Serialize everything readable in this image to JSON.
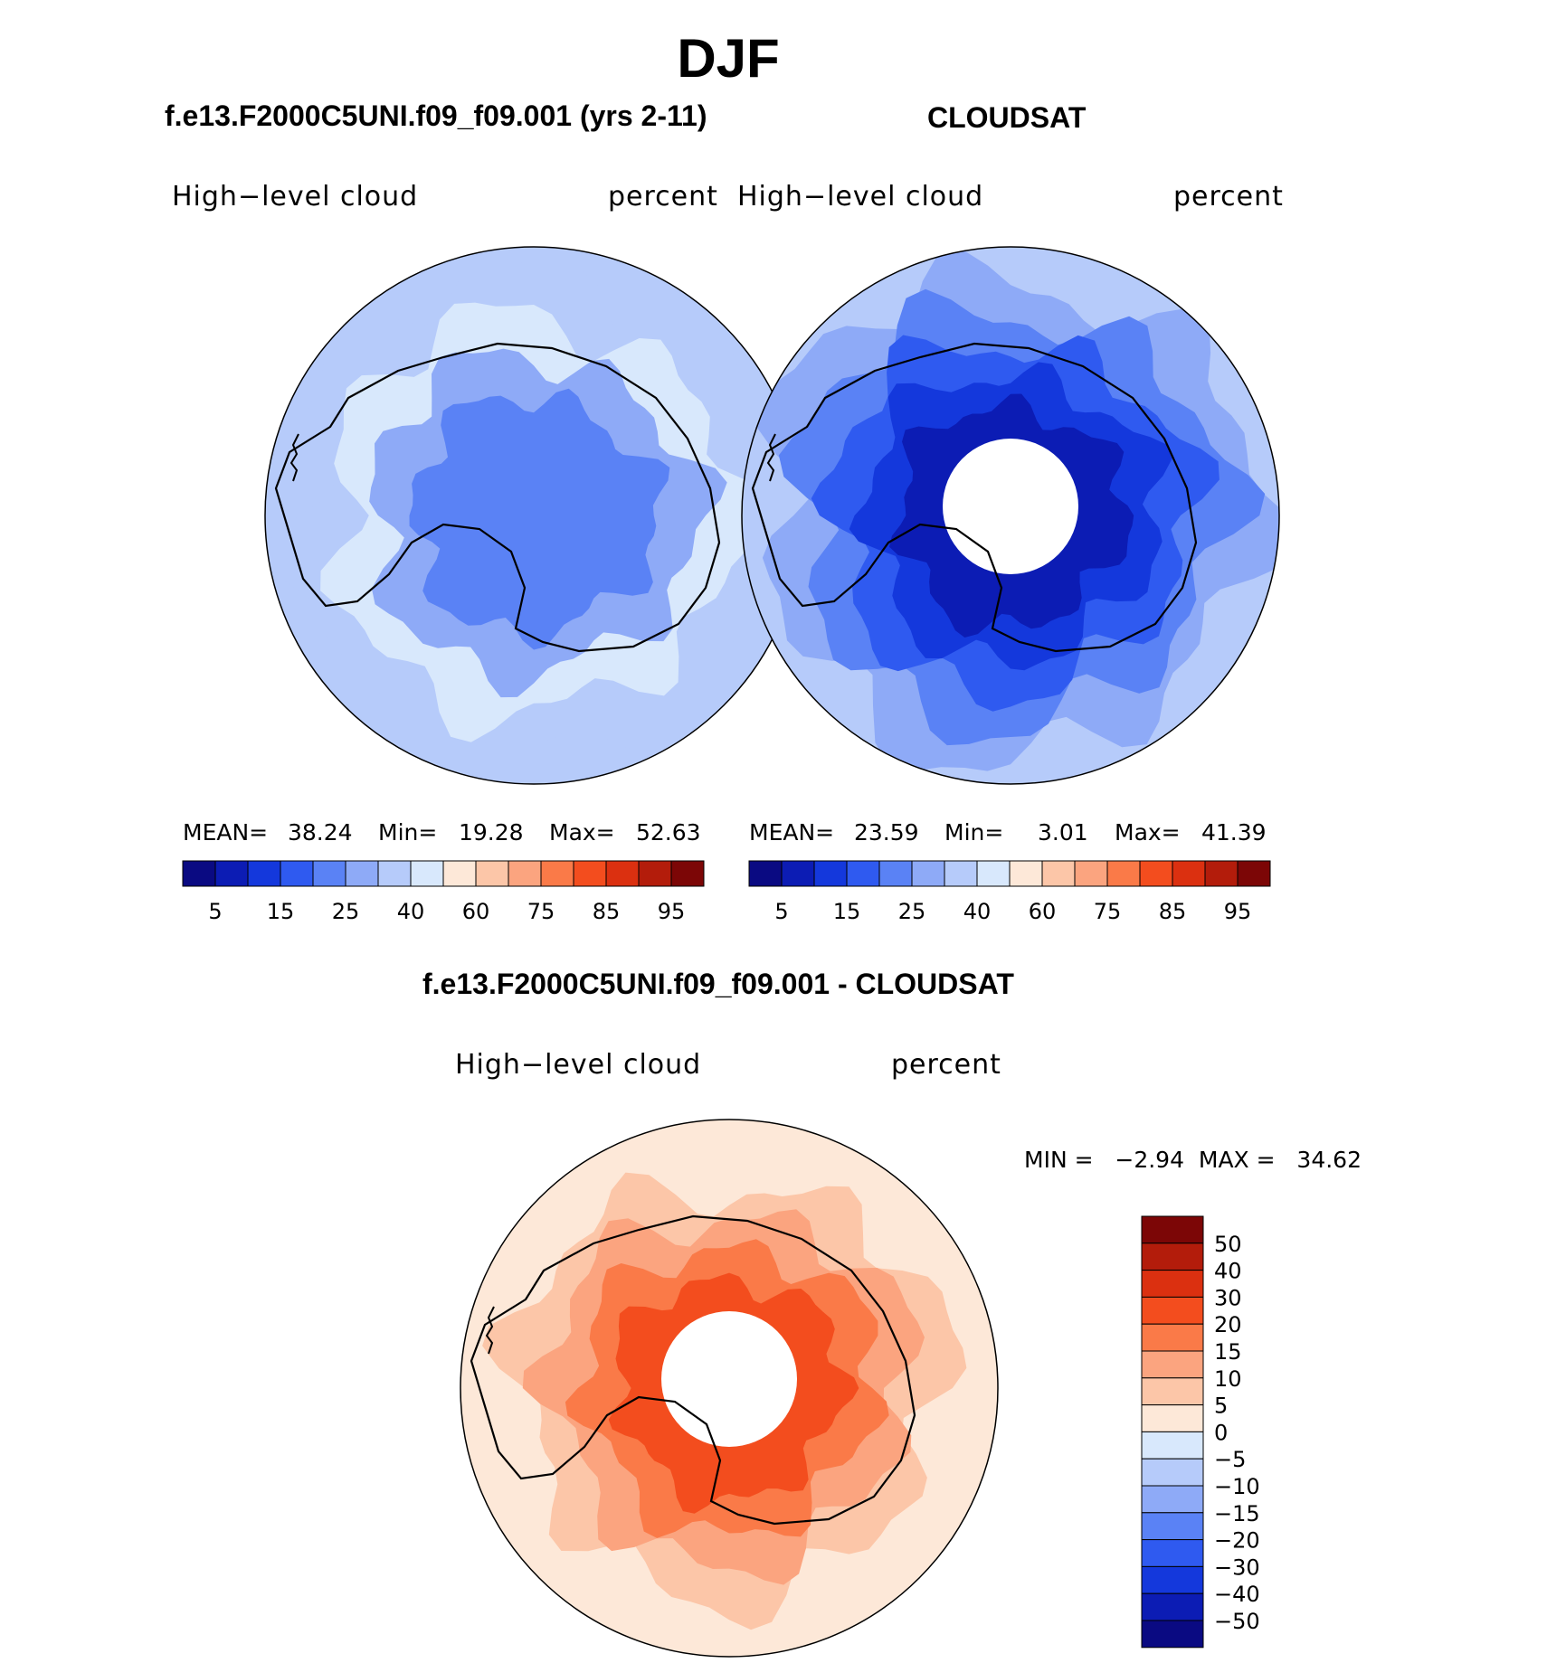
{
  "figure": {
    "title": "DJF",
    "colors": {
      "coast": "#000000",
      "background": "#ffffff"
    }
  },
  "panels": [
    {
      "title": "f.e13.F2000C5UNI.f09_f09.001 (yrs 2-11)",
      "left_label": "High−level cloud",
      "right_label": "percent",
      "mean_label": "MEAN=",
      "mean_value": "38.24",
      "min_label": "Min=",
      "min_value": "19.28",
      "max_label": "Max=",
      "max_value": "52.63"
    },
    {
      "title": "CLOUDSAT",
      "left_label": "High−level cloud",
      "right_label": "percent",
      "mean_label": "MEAN=",
      "mean_value": "23.59",
      "min_label": "Min=",
      "min_value": "3.01",
      "max_label": "Max=",
      "max_value": "41.39"
    }
  ],
  "diff_panel": {
    "title": "f.e13.F2000C5UNI.f09_f09.001 - CLOUDSAT",
    "left_label": "High−level cloud",
    "right_label": "percent",
    "min_max_label": "MIN =   −2.94  MAX =   34.62"
  },
  "chart_data": [
    {
      "type": "heatmap",
      "projection": "south polar stereographic",
      "title": "f.e13.F2000C5UNI.f09_f09.001 (yrs 2-11)",
      "variable": "High-level cloud",
      "units": "percent",
      "mean": 38.24,
      "min": 19.28,
      "max": 52.63,
      "colorbar_ticks": [
        "5",
        "15",
        "25",
        "40",
        "60",
        "75",
        "85",
        "95"
      ],
      "colorbar_colors": [
        "#0a0a82",
        "#0c1cb4",
        "#1438dc",
        "#2f5af0",
        "#5a82f5",
        "#8eaaf7",
        "#b6cbfa",
        "#d8e8fc",
        "#fde8d8",
        "#fcc6a8",
        "#fba47f",
        "#fa7a48",
        "#f34d1e",
        "#db3010",
        "#b31c0b",
        "#7c0606"
      ],
      "rings": [
        {
          "level": 40,
          "color": "#b6cbfa"
        },
        {
          "level": 45,
          "color": "#d8e8fc"
        },
        {
          "level": 35,
          "color": "#8eaaf7"
        },
        {
          "level": 30,
          "color": "#5a82f5"
        }
      ]
    },
    {
      "type": "heatmap",
      "projection": "south polar stereographic",
      "title": "CLOUDSAT",
      "variable": "High-level cloud",
      "units": "percent",
      "mean": 23.59,
      "min": 3.01,
      "max": 41.39,
      "colorbar_ticks": [
        "5",
        "15",
        "25",
        "40",
        "60",
        "75",
        "85",
        "95"
      ],
      "colorbar_colors": [
        "#0a0a82",
        "#0c1cb4",
        "#1438dc",
        "#2f5af0",
        "#5a82f5",
        "#8eaaf7",
        "#b6cbfa",
        "#d8e8fc",
        "#fde8d8",
        "#fcc6a8",
        "#fba47f",
        "#fa7a48",
        "#f34d1e",
        "#db3010",
        "#b31c0b",
        "#7c0606"
      ],
      "rings": [
        {
          "level": 35,
          "color": "#8eaaf7"
        },
        {
          "level": 30,
          "color": "#5a82f5"
        },
        {
          "level": 25,
          "color": "#2f5af0"
        },
        {
          "level": 20,
          "color": "#1438dc"
        },
        {
          "level": 15,
          "color": "#0c1cb4"
        }
      ]
    },
    {
      "type": "heatmap",
      "projection": "south polar stereographic",
      "title": "f.e13.F2000C5UNI.f09_f09.001 - CLOUDSAT",
      "variable": "High-level cloud",
      "units": "percent",
      "min": -2.94,
      "max": 34.62,
      "colorbar_ticks": [
        "50",
        "40",
        "30",
        "20",
        "15",
        "10",
        "5",
        "0",
        "−5",
        "−10",
        "−15",
        "−20",
        "−30",
        "−40",
        "−50"
      ],
      "colorbar_colors": [
        "#7c0606",
        "#b31c0b",
        "#db3010",
        "#f34d1e",
        "#fa7a48",
        "#fba47f",
        "#fcc6a8",
        "#fde8d8",
        "#d8e8fc",
        "#b6cbfa",
        "#8eaaf7",
        "#5a82f5",
        "#2f5af0",
        "#1438dc",
        "#0c1cb4",
        "#0a0a82"
      ],
      "rings": [
        {
          "level": 5,
          "color": "#fde8d8"
        },
        {
          "level": 10,
          "color": "#fcc6a8"
        },
        {
          "level": 15,
          "color": "#fba47f"
        },
        {
          "level": 20,
          "color": "#fa7a48"
        },
        {
          "level": 30,
          "color": "#f34d1e"
        }
      ]
    }
  ]
}
